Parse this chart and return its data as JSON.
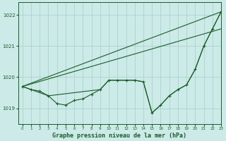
{
  "title": "Graphe pression niveau de la mer (hPa)",
  "bg_color": "#cceae7",
  "grid_color": "#aad4d0",
  "line_color": "#1a5c2a",
  "xlim": [
    -0.5,
    23
  ],
  "ylim": [
    1018.5,
    1022.4
  ],
  "yticks": [
    1019,
    1020,
    1021,
    1022
  ],
  "xticks": [
    0,
    1,
    2,
    3,
    4,
    5,
    6,
    7,
    8,
    9,
    10,
    11,
    12,
    13,
    14,
    15,
    16,
    17,
    18,
    19,
    20,
    21,
    22,
    23
  ],
  "series": [
    {
      "x": [
        0,
        1,
        2,
        3,
        4,
        5,
        6,
        7,
        8,
        9,
        10,
        11,
        12,
        13,
        14,
        15,
        16,
        17,
        18,
        19,
        20,
        21,
        22,
        23
      ],
      "y": [
        1019.7,
        1019.6,
        1019.55,
        1019.4,
        1019.15,
        1019.1,
        1019.25,
        1019.3,
        1019.45,
        1019.6,
        1019.9,
        1019.9,
        1019.9,
        1019.9,
        1019.85,
        1018.85,
        1019.1,
        1019.4,
        1019.6,
        1019.75,
        1020.25,
        1021.0,
        1021.55,
        1022.1
      ],
      "has_markers": true
    },
    {
      "x": [
        0,
        23
      ],
      "y": [
        1019.7,
        1022.1
      ],
      "has_markers": false
    },
    {
      "x": [
        0,
        23
      ],
      "y": [
        1019.7,
        1021.55
      ],
      "has_markers": false
    },
    {
      "x": [
        0,
        3,
        9,
        10,
        11,
        12,
        13,
        14,
        15,
        16,
        17,
        18,
        19,
        20,
        21,
        22,
        23
      ],
      "y": [
        1019.7,
        1019.4,
        1019.6,
        1019.9,
        1019.9,
        1019.9,
        1019.9,
        1019.85,
        1018.85,
        1019.1,
        1019.4,
        1019.6,
        1019.75,
        1020.25,
        1021.0,
        1021.55,
        1022.1
      ],
      "has_markers": false
    }
  ]
}
